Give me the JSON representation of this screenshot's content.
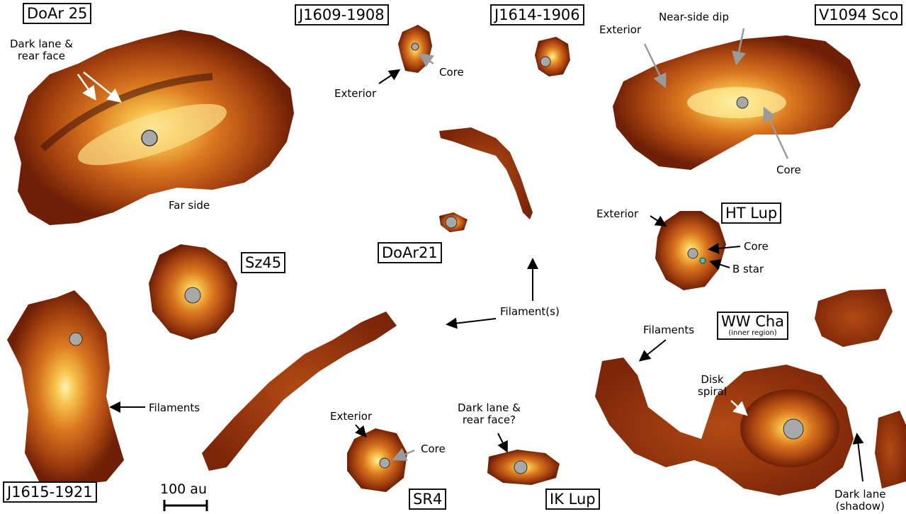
{
  "objects": {
    "doar25": "DoAr 25",
    "j1609": "J1609-1908",
    "j1614": "J1614-1906",
    "v1094": "V1094 Sco",
    "htlup": "HT Lup",
    "sz45": "Sz45",
    "doar21": "DoAr21",
    "wwcha": "WW Cha",
    "wwcha_sub": "(inner region)",
    "j1615": "J1615-1921",
    "sr4": "SR4",
    "iklup": "IK Lup"
  },
  "annotations": {
    "doar25_darklane_1": "Dark lane &",
    "doar25_darklane_2": "rear face",
    "doar25_farside": "Far side",
    "j1609_exterior": "Exterior",
    "j1609_core": "Core",
    "v1094_exterior": "Exterior",
    "v1094_nearside": "Near-side dip",
    "v1094_core": "Core",
    "htlup_exterior": "Exterior",
    "htlup_core": "Core",
    "htlup_bstar": "B star",
    "filaments_center": "Filament(s)",
    "wwcha_filaments": "Filaments",
    "wwcha_disk_1": "Disk",
    "wwcha_disk_2": "spiral",
    "wwcha_darklane_1": "Dark lane",
    "wwcha_darklane_2": "(shadow)",
    "j1615_filaments": "Filaments",
    "sr4_exterior": "Exterior",
    "sr4_core": "Core",
    "iklup_darklane_1": "Dark lane &",
    "iklup_darklane_2": "rear face?"
  },
  "scale_bar": {
    "label": "100 au"
  },
  "colors": {
    "outer": "#8a2c0a",
    "mid": "#c8601a",
    "inner": "#f0b040",
    "core": "#fff0a0",
    "star": "#a8a8a8",
    "bstar": "#39c8c8"
  }
}
